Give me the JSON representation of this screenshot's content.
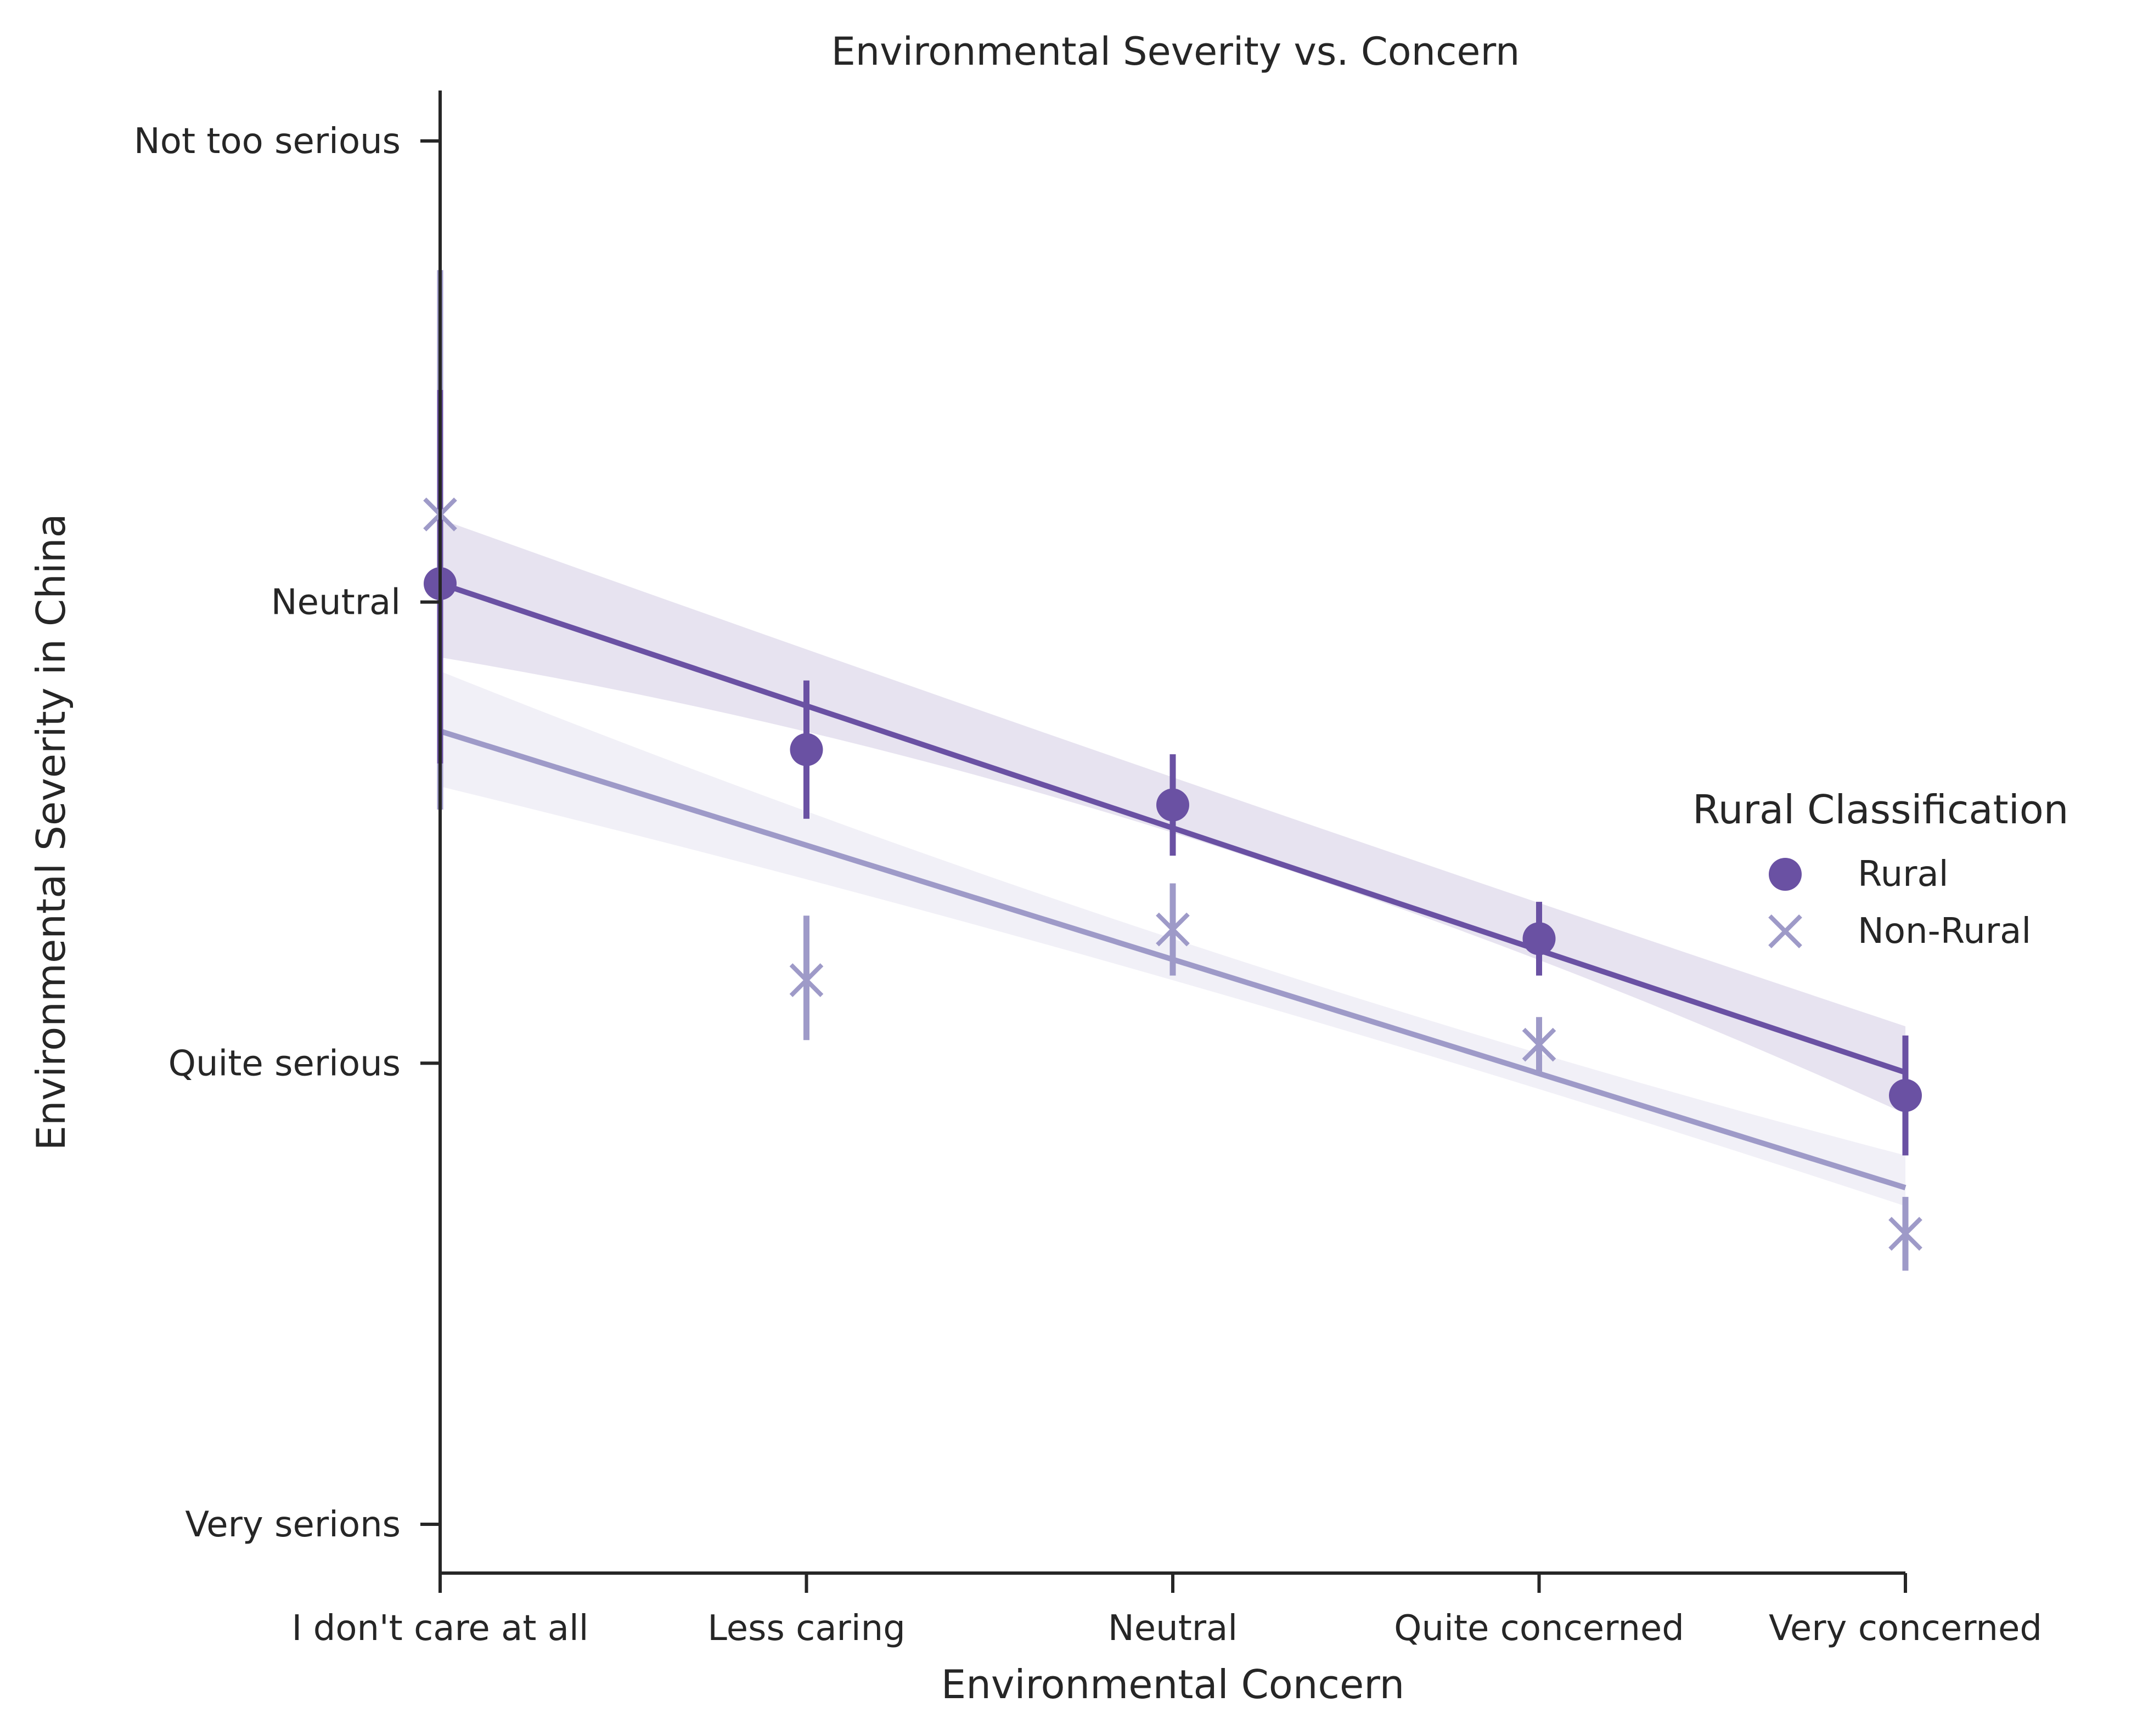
{
  "chart_data": {
    "type": "scatter",
    "title": "Environmental Severity vs. Concern",
    "xlabel": "Environmental Concern",
    "ylabel": "Environmental Severity in China",
    "categories": [
      "I don't care at all",
      "Less caring",
      "Neutral",
      "Quite concerned",
      "Very concerned"
    ],
    "x": [
      1,
      2,
      3,
      4,
      5
    ],
    "xlim": [
      1,
      5
    ],
    "y_ticks": [
      {
        "value": 1,
        "label": "Very serions"
      },
      {
        "value": 2,
        "label": "Quite serious"
      },
      {
        "value": 3,
        "label": "Neutral"
      },
      {
        "value": 4,
        "label": "Not too serious"
      }
    ],
    "ylim": [
      0.9,
      4.19
    ],
    "legend": {
      "title": "Rural Classification",
      "position": "right"
    },
    "grid": false,
    "series": [
      {
        "name": "Rural",
        "marker": "circle",
        "color": "#6a51a3",
        "mean": [
          3.04,
          2.68,
          2.56,
          2.27,
          1.93
        ],
        "ci_low": [
          2.65,
          2.53,
          2.45,
          2.19,
          1.8
        ],
        "ci_high": [
          3.46,
          2.83,
          2.67,
          2.35,
          2.06
        ],
        "fit": {
          "start": 3.04,
          "end": 1.98
        },
        "band": {
          "start": [
            2.88,
            3.18
          ],
          "mid": [
            2.5,
            2.62
          ],
          "end": [
            1.89,
            2.08
          ]
        }
      },
      {
        "name": "Non-Rural",
        "marker": "x",
        "color": "#9e9ac8",
        "mean": [
          3.19,
          2.18,
          2.29,
          2.04,
          1.63
        ],
        "ci_low": [
          2.55,
          2.05,
          2.19,
          1.98,
          1.55
        ],
        "ci_high": [
          3.72,
          2.32,
          2.39,
          2.1,
          1.71
        ],
        "fit": {
          "start": 2.72,
          "end": 1.73
        },
        "band": {
          "start": [
            2.6,
            2.85
          ],
          "mid": [
            2.18,
            2.27
          ],
          "end": [
            1.69,
            1.8
          ]
        }
      }
    ]
  }
}
